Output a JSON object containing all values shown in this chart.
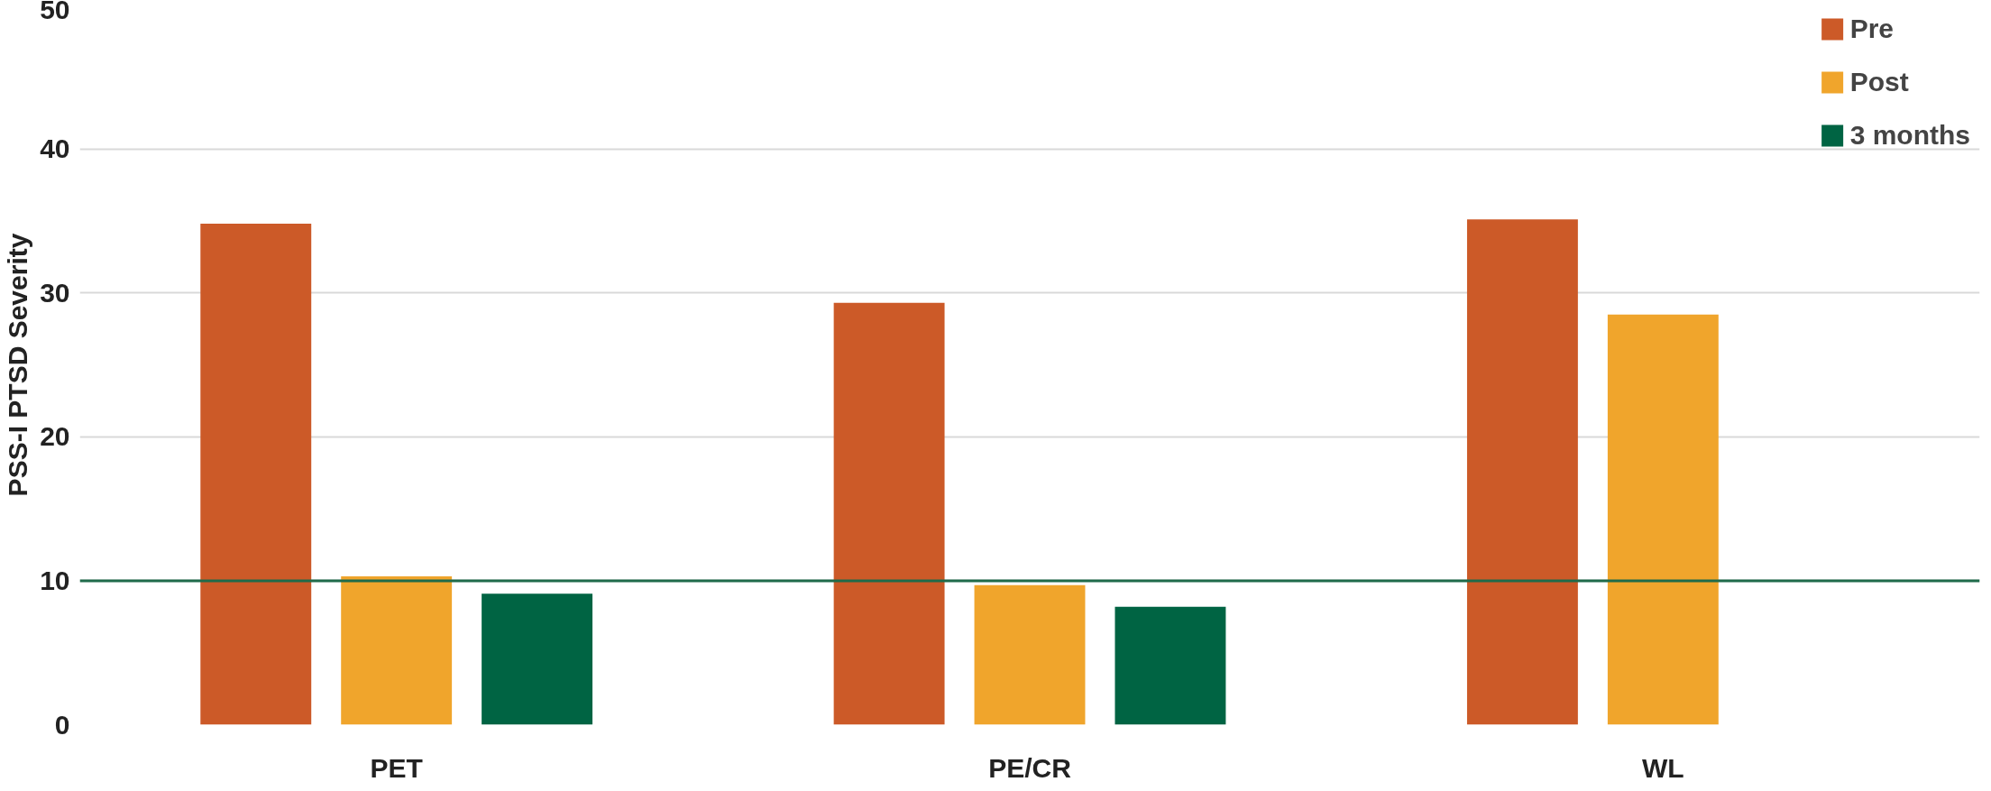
{
  "chart_data": {
    "type": "bar",
    "ylabel": "PSS-I PTSD Severity",
    "categories": [
      "PET",
      "PE/CR",
      "WL"
    ],
    "series": [
      {
        "name": "Pre",
        "color": "#cc5a28",
        "values": [
          34.8,
          29.3,
          35.1
        ]
      },
      {
        "name": "Post",
        "color": "#f0a52c",
        "values": [
          10.3,
          9.7,
          28.5
        ]
      },
      {
        "name": "3 months",
        "color": "#006443",
        "values": [
          9.1,
          8.2,
          null
        ]
      }
    ],
    "ylim": [
      0,
      50
    ],
    "yticks": [
      0,
      10,
      20,
      30,
      40,
      50
    ],
    "grid": "y",
    "legend": "top right",
    "ref_lines": [
      {
        "axis": "y",
        "value": 10,
        "color": "#1f6b4a"
      }
    ]
  }
}
